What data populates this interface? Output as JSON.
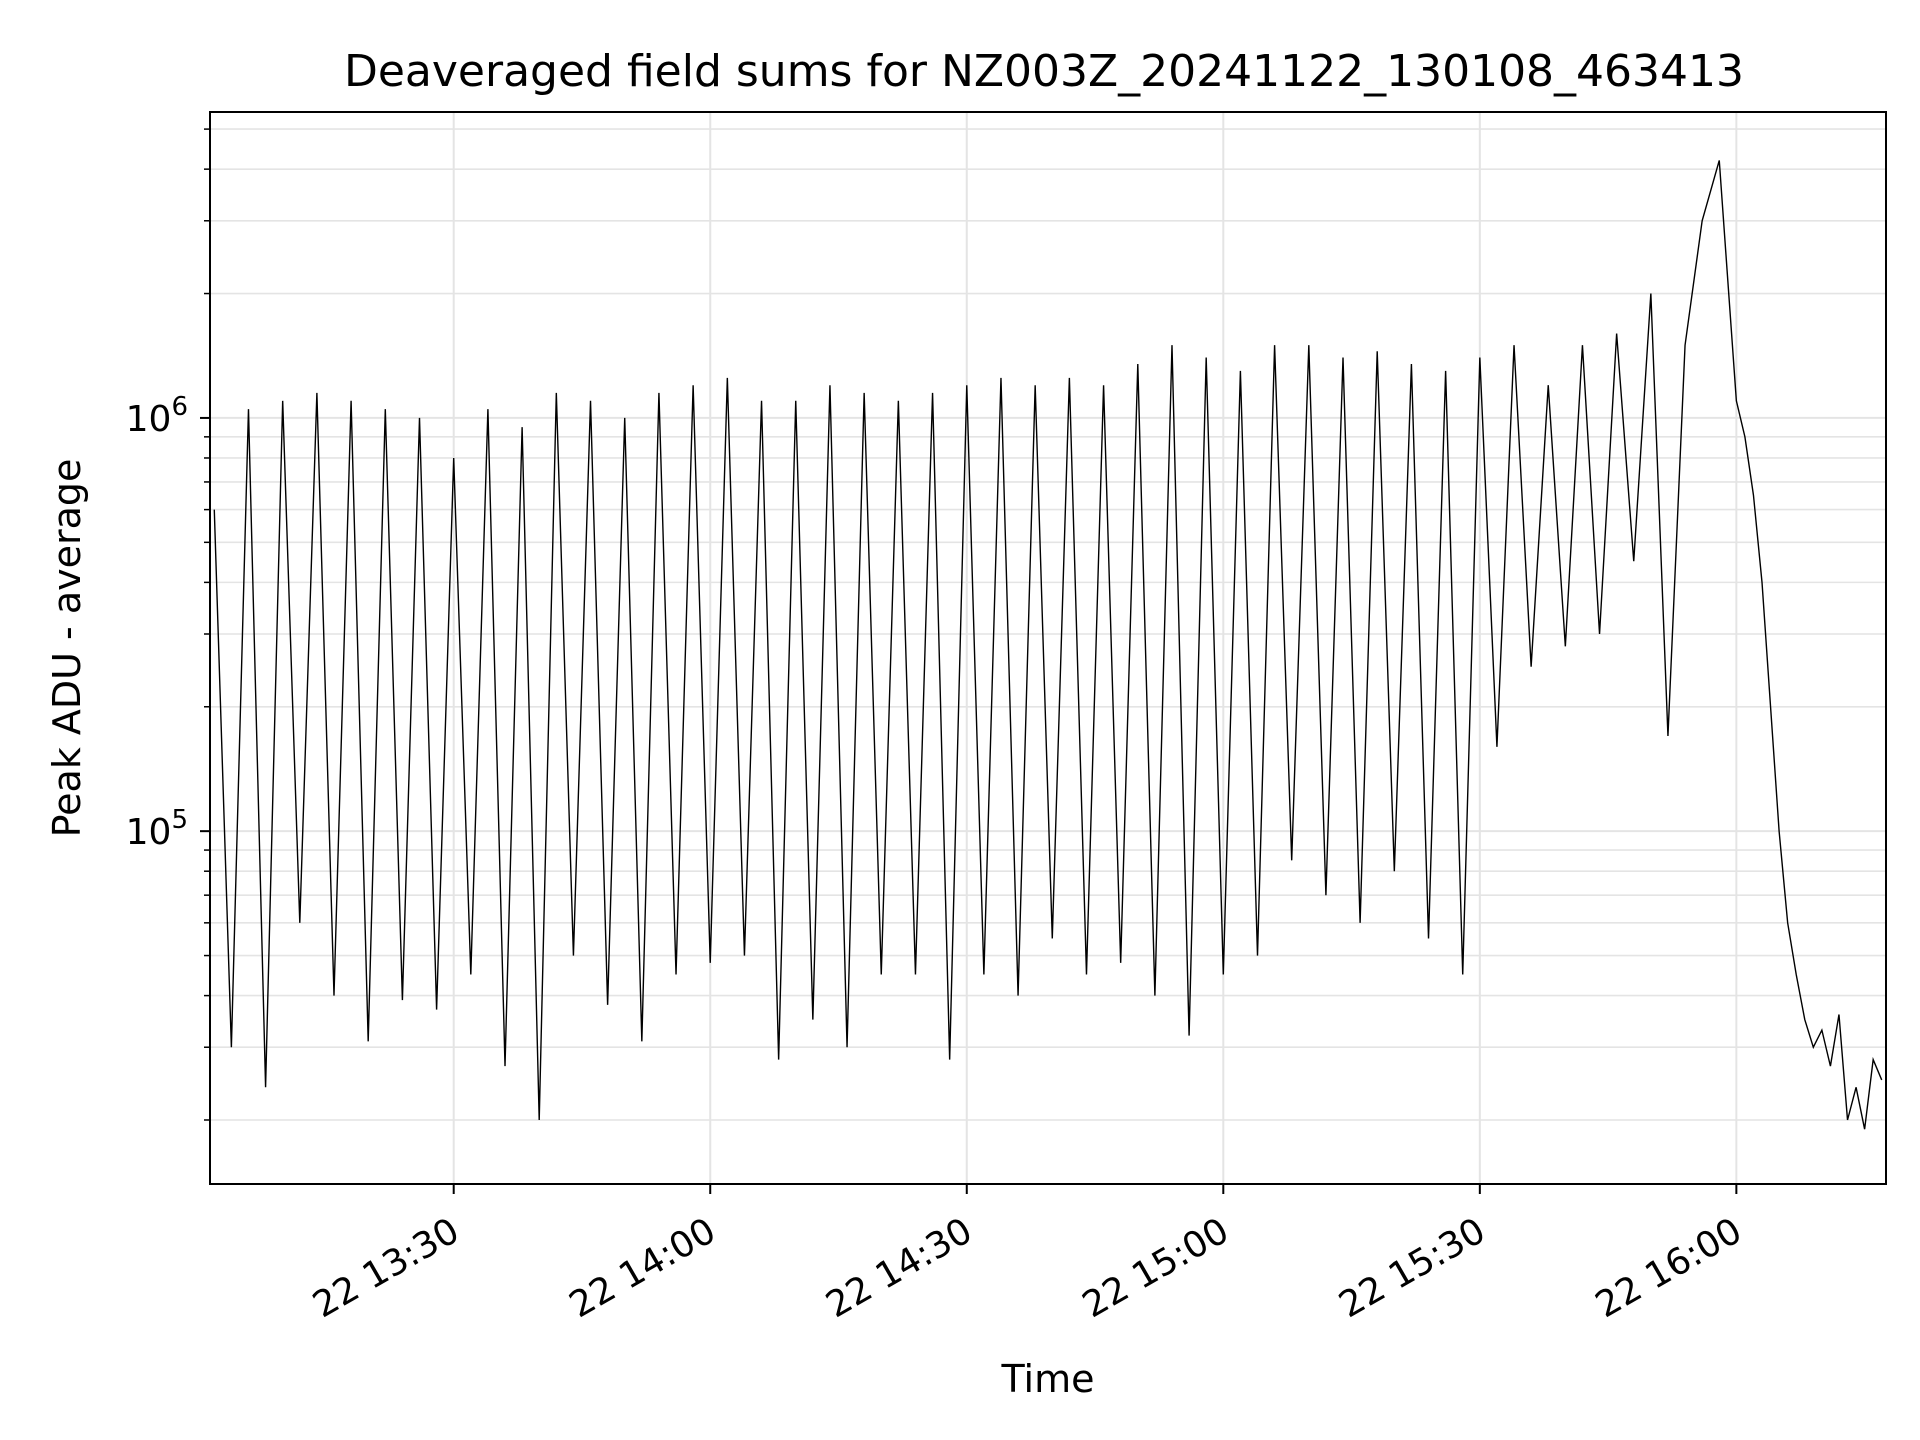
{
  "chart_data": {
    "type": "line",
    "title": "Deaveraged field sums for NZ003Z_20241122_130108_463413",
    "xlabel": "Time",
    "ylabel": "Peak ADU - average",
    "y_scale": "log",
    "ylim": [
      14000,
      5500000
    ],
    "xlim": [
      "22 13:01:30",
      "22 16:17:30"
    ],
    "grid": true,
    "legend": false,
    "line_color": "#000000",
    "x_ticks": [
      {
        "value": "22 13:30",
        "label": "22 13:30"
      },
      {
        "value": "22 14:00",
        "label": "22 14:00"
      },
      {
        "value": "22 14:30",
        "label": "22 14:30"
      },
      {
        "value": "22 15:00",
        "label": "22 15:00"
      },
      {
        "value": "22 15:30",
        "label": "22 15:30"
      },
      {
        "value": "22 16:00",
        "label": "22 16:00"
      }
    ],
    "y_major_ticks": [
      {
        "value": 100000,
        "base": "10",
        "exponent": "5"
      },
      {
        "value": 1000000,
        "base": "10",
        "exponent": "6"
      }
    ],
    "series": [
      {
        "points": [
          [
            "22 13:02",
            600000
          ],
          [
            "22 13:04",
            30000
          ],
          [
            "22 13:06",
            1050000
          ],
          [
            "22 13:08",
            24000
          ],
          [
            "22 13:10",
            1100000
          ],
          [
            "22 13:12",
            60000
          ],
          [
            "22 13:14",
            1150000
          ],
          [
            "22 13:16",
            40000
          ],
          [
            "22 13:18",
            1100000
          ],
          [
            "22 13:20",
            31000
          ],
          [
            "22 13:22",
            1050000
          ],
          [
            "22 13:24",
            39000
          ],
          [
            "22 13:26",
            1000000
          ],
          [
            "22 13:28",
            37000
          ],
          [
            "22 13:30",
            800000
          ],
          [
            "22 13:32",
            45000
          ],
          [
            "22 13:34",
            1050000
          ],
          [
            "22 13:36",
            27000
          ],
          [
            "22 13:38",
            950000
          ],
          [
            "22 13:40",
            20000
          ],
          [
            "22 13:42",
            1150000
          ],
          [
            "22 13:44",
            50000
          ],
          [
            "22 13:46",
            1100000
          ],
          [
            "22 13:48",
            38000
          ],
          [
            "22 13:50",
            1000000
          ],
          [
            "22 13:52",
            31000
          ],
          [
            "22 13:54",
            1150000
          ],
          [
            "22 13:56",
            45000
          ],
          [
            "22 13:58",
            1200000
          ],
          [
            "22 14:00",
            48000
          ],
          [
            "22 14:02",
            1250000
          ],
          [
            "22 14:04",
            50000
          ],
          [
            "22 14:06",
            1100000
          ],
          [
            "22 14:08",
            28000
          ],
          [
            "22 14:10",
            1100000
          ],
          [
            "22 14:12",
            35000
          ],
          [
            "22 14:14",
            1200000
          ],
          [
            "22 14:16",
            30000
          ],
          [
            "22 14:18",
            1150000
          ],
          [
            "22 14:20",
            45000
          ],
          [
            "22 14:22",
            1100000
          ],
          [
            "22 14:24",
            45000
          ],
          [
            "22 14:26",
            1150000
          ],
          [
            "22 14:28",
            28000
          ],
          [
            "22 14:30",
            1200000
          ],
          [
            "22 14:32",
            45000
          ],
          [
            "22 14:34",
            1250000
          ],
          [
            "22 14:36",
            40000
          ],
          [
            "22 14:38",
            1200000
          ],
          [
            "22 14:40",
            55000
          ],
          [
            "22 14:42",
            1250000
          ],
          [
            "22 14:44",
            45000
          ],
          [
            "22 14:46",
            1200000
          ],
          [
            "22 14:48",
            48000
          ],
          [
            "22 14:50",
            1350000
          ],
          [
            "22 14:52",
            40000
          ],
          [
            "22 14:54",
            1500000
          ],
          [
            "22 14:56",
            32000
          ],
          [
            "22 14:58",
            1400000
          ],
          [
            "22 15:00",
            45000
          ],
          [
            "22 15:02",
            1300000
          ],
          [
            "22 15:04",
            50000
          ],
          [
            "22 15:06",
            1500000
          ],
          [
            "22 15:08",
            85000
          ],
          [
            "22 15:10",
            1500000
          ],
          [
            "22 15:12",
            70000
          ],
          [
            "22 15:14",
            1400000
          ],
          [
            "22 15:16",
            60000
          ],
          [
            "22 15:18",
            1450000
          ],
          [
            "22 15:20",
            80000
          ],
          [
            "22 15:22",
            1350000
          ],
          [
            "22 15:24",
            55000
          ],
          [
            "22 15:26",
            1300000
          ],
          [
            "22 15:28",
            45000
          ],
          [
            "22 15:30",
            1400000
          ],
          [
            "22 15:32",
            160000
          ],
          [
            "22 15:34",
            1500000
          ],
          [
            "22 15:36",
            250000
          ],
          [
            "22 15:38",
            1200000
          ],
          [
            "22 15:40",
            280000
          ],
          [
            "22 15:42",
            1500000
          ],
          [
            "22 15:44",
            300000
          ],
          [
            "22 15:46",
            1600000
          ],
          [
            "22 15:48",
            450000
          ],
          [
            "22 15:50",
            2000000
          ],
          [
            "22 15:52",
            170000
          ],
          [
            "22 15:54",
            1500000
          ],
          [
            "22 15:56",
            3000000
          ],
          [
            "22 15:58",
            4200000
          ],
          [
            "22 16:00",
            1100000
          ],
          [
            "22 16:01",
            900000
          ],
          [
            "22 16:02",
            650000
          ],
          [
            "22 16:03",
            400000
          ],
          [
            "22 16:04",
            200000
          ],
          [
            "22 16:05",
            100000
          ],
          [
            "22 16:06",
            60000
          ],
          [
            "22 16:07",
            45000
          ],
          [
            "22 16:08",
            35000
          ],
          [
            "22 16:09",
            30000
          ],
          [
            "22 16:10",
            33000
          ],
          [
            "22 16:11",
            27000
          ],
          [
            "22 16:12",
            36000
          ],
          [
            "22 16:13",
            20000
          ],
          [
            "22 16:14",
            24000
          ],
          [
            "22 16:15",
            19000
          ],
          [
            "22 16:16",
            28000
          ],
          [
            "22 16:17",
            25000
          ]
        ]
      }
    ]
  }
}
